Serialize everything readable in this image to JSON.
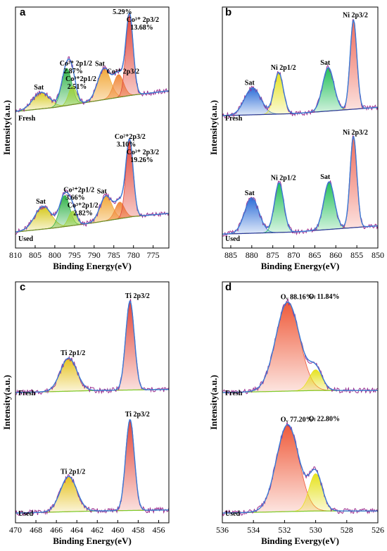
{
  "chart_data": [
    {
      "panel": "a",
      "type": "area",
      "xlabel": "Binding Energy(eV)",
      "ylabel": "Intensity(a.u.)",
      "xlim": [
        810,
        771
      ],
      "xticks": [
        "810",
        "805",
        "800",
        "795",
        "790",
        "785",
        "780",
        "775"
      ],
      "xtick_values": [
        810,
        805,
        800,
        795,
        790,
        785,
        780,
        775
      ],
      "colors": {
        "raw": "#9b2d8f",
        "envelope": "#3a7bd5",
        "background": "#6a8f2a"
      },
      "spectra": [
        {
          "condition": "Fresh",
          "annotations": [
            {
              "label": "Sat",
              "x": 803.5
            },
            {
              "label": "Co²⁺ 2p1/2",
              "x": 797.0
            },
            {
              "label": "2.87%",
              "x": 796.0
            },
            {
              "label": "Co³⁺2p1/2",
              "x": 795.5
            },
            {
              "label": "2.51%",
              "x": 795.0
            },
            {
              "label": "Sat",
              "x": 788.0
            },
            {
              "label": "Co²⁺ 2p3/2",
              "x": 785.0
            },
            {
              "label": "5.29%",
              "x": 783.5
            },
            {
              "label": "Co³⁺ 2p3/2",
              "x": 780.0
            },
            {
              "label": "13.68%",
              "x": 779.0
            }
          ],
          "components": [
            {
              "label": "Sat",
              "center": 803.5,
              "fwhm": 5.0,
              "height": 0.16,
              "color": "#d6c81a"
            },
            {
              "label": "Co²⁺ 2p1/2",
              "center": 797.0,
              "fwhm": 3.0,
              "height": 0.36,
              "color": "#32b34a"
            },
            {
              "label": "Co³⁺ 2p1/2",
              "center": 795.5,
              "fwhm": 2.4,
              "height": 0.18,
              "color": "#9fd23c"
            },
            {
              "label": "Sat",
              "center": 787.5,
              "fwhm": 3.8,
              "height": 0.3,
              "color": "#f2a93b"
            },
            {
              "label": "Co²⁺ 2p3/2",
              "center": 783.8,
              "fwhm": 3.0,
              "height": 0.22,
              "color": "#f08a3c"
            },
            {
              "label": "Co³⁺ 2p3/2",
              "center": 781.0,
              "fwhm": 2.2,
              "height": 0.78,
              "color": "#e2473a"
            }
          ],
          "background": [
            [
              810,
              0.1
            ],
            [
              800,
              0.14
            ],
            [
              790,
              0.2
            ],
            [
              780,
              0.26
            ],
            [
              771,
              0.3
            ]
          ]
        },
        {
          "condition": "Used",
          "annotations": [
            {
              "label": "Sat",
              "x": 803.0
            },
            {
              "label": "Co²⁺2p1/2",
              "x": 796.0
            },
            {
              "label": "3.66%",
              "x": 795.5
            },
            {
              "label": "Co³⁺2p1/2",
              "x": 795.0
            },
            {
              "label": "2.82%",
              "x": 793.5
            },
            {
              "label": "Sat",
              "x": 787.5
            },
            {
              "label": "Co²⁺2p3/2",
              "x": 783.0
            },
            {
              "label": "3.10%",
              "x": 782.5
            },
            {
              "label": "Co³⁺ 2p3/2",
              "x": 780.0
            },
            {
              "label": "19.26%",
              "x": 779.0
            }
          ],
          "components": [
            {
              "label": "Sat",
              "center": 803.0,
              "fwhm": 5.0,
              "height": 0.22,
              "color": "#d6c81a"
            },
            {
              "label": "Co²⁺ 2p1/2",
              "center": 797.5,
              "fwhm": 3.0,
              "height": 0.3,
              "color": "#32b34a"
            },
            {
              "label": "Co³⁺ 2p1/2",
              "center": 795.5,
              "fwhm": 2.4,
              "height": 0.14,
              "color": "#9fd23c"
            },
            {
              "label": "Sat",
              "center": 787.0,
              "fwhm": 3.6,
              "height": 0.24,
              "color": "#f2a93b"
            },
            {
              "label": "Co²⁺ 2p3/2",
              "center": 783.5,
              "fwhm": 2.8,
              "height": 0.16,
              "color": "#f08a3c"
            },
            {
              "label": "Co³⁺ 2p3/2",
              "center": 781.0,
              "fwhm": 2.2,
              "height": 0.74,
              "color": "#e2473a"
            }
          ],
          "background": [
            [
              810,
              0.1
            ],
            [
              800,
              0.14
            ],
            [
              790,
              0.19
            ],
            [
              780,
              0.25
            ],
            [
              771,
              0.28
            ]
          ]
        }
      ]
    },
    {
      "panel": "b",
      "type": "area",
      "xlabel": "Binding Energy(eV)",
      "ylabel": "Intensity(a.u.)",
      "xlim": [
        887,
        850
      ],
      "xticks": [
        "885",
        "880",
        "875",
        "870",
        "865",
        "860",
        "855",
        "850"
      ],
      "xtick_values": [
        885,
        880,
        875,
        870,
        865,
        860,
        855,
        850
      ],
      "colors": {
        "raw": "#9b2d8f",
        "envelope": "#3a7bd5",
        "background": "#2b3a9b"
      },
      "spectra": [
        {
          "condition": "Fresh",
          "annotations": [
            {
              "label": "Sat",
              "x": 880.0
            },
            {
              "label": "Ni 2p1/2",
              "x": 873.8
            },
            {
              "label": "Sat",
              "x": 862.0
            },
            {
              "label": "Ni 2p3/2",
              "x": 856.0
            }
          ],
          "components": [
            {
              "label": "Sat",
              "center": 879.8,
              "fwhm": 4.5,
              "height": 0.26,
              "color": "#2f6fd8"
            },
            {
              "label": "Ni 2p1/2",
              "center": 873.6,
              "fwhm": 2.6,
              "height": 0.4,
              "color": "#e6e21f"
            },
            {
              "label": "Sat",
              "center": 861.8,
              "fwhm": 3.2,
              "height": 0.42,
              "color": "#22c05a"
            },
            {
              "label": "Ni 2p3/2",
              "center": 855.8,
              "fwhm": 1.9,
              "height": 0.86,
              "color": "#ef6b5b"
            }
          ],
          "background": [
            [
              887,
              0.06
            ],
            [
              870,
              0.08
            ],
            [
              860,
              0.11
            ],
            [
              850,
              0.14
            ]
          ]
        },
        {
          "condition": "Used",
          "annotations": [
            {
              "label": "Sat",
              "x": 880.0
            },
            {
              "label": "Ni 2p1/2",
              "x": 873.8
            },
            {
              "label": "Sat",
              "x": 862.0
            },
            {
              "label": "Ni 2p3/2",
              "x": 856.0
            }
          ],
          "components": [
            {
              "label": "Sat",
              "center": 880.0,
              "fwhm": 4.0,
              "height": 0.34,
              "color": "#2f6fd8"
            },
            {
              "label": "Ni 2p1/2",
              "center": 873.5,
              "fwhm": 2.6,
              "height": 0.48,
              "color": "#22c05a"
            },
            {
              "label": "Sat",
              "center": 861.6,
              "fwhm": 3.0,
              "height": 0.46,
              "color": "#22c05a"
            },
            {
              "label": "Ni 2p3/2",
              "center": 855.8,
              "fwhm": 1.9,
              "height": 0.88,
              "color": "#ef6b5b"
            }
          ],
          "background": [
            [
              887,
              0.08
            ],
            [
              870,
              0.1
            ],
            [
              860,
              0.13
            ],
            [
              850,
              0.16
            ]
          ]
        }
      ]
    },
    {
      "panel": "c",
      "type": "area",
      "xlabel": "Binding Energy(eV)",
      "ylabel": "Intensity(a.u.)",
      "xlim": [
        470,
        455
      ],
      "xticks": [
        "470",
        "468",
        "466",
        "464",
        "462",
        "460",
        "458",
        "456"
      ],
      "xtick_values": [
        470,
        468,
        466,
        464,
        462,
        460,
        458,
        456
      ],
      "colors": {
        "raw": "#9b2d8f",
        "envelope": "#3a7bd5",
        "background": "#7ecb2a"
      },
      "spectra": [
        {
          "condition": "Fresh",
          "annotations": [
            {
              "label": "Ti 2p1/2",
              "x": 464.9
            },
            {
              "label": "Ti 2p3/2",
              "x": 458.6
            }
          ],
          "components": [
            {
              "label": "Ti 2p1/2",
              "center": 464.8,
              "fwhm": 1.9,
              "height": 0.32,
              "color": "#e6c21f"
            },
            {
              "label": "Ti 2p3/2",
              "center": 458.8,
              "fwhm": 1.0,
              "height": 0.86,
              "color": "#e2473a"
            }
          ],
          "background": [
            [
              470,
              0.04
            ],
            [
              462,
              0.06
            ],
            [
              455,
              0.07
            ]
          ]
        },
        {
          "condition": "Used",
          "annotations": [
            {
              "label": "Ti 2p1/2",
              "x": 464.9
            },
            {
              "label": "Ti 2p3/2",
              "x": 458.6
            }
          ],
          "components": [
            {
              "label": "Ti 2p1/2",
              "center": 464.8,
              "fwhm": 1.9,
              "height": 0.34,
              "color": "#e6c21f"
            },
            {
              "label": "Ti 2p3/2",
              "center": 458.8,
              "fwhm": 1.0,
              "height": 0.88,
              "color": "#e2473a"
            }
          ],
          "background": [
            [
              470,
              0.04
            ],
            [
              462,
              0.06
            ],
            [
              455,
              0.07
            ]
          ]
        }
      ]
    },
    {
      "panel": "d",
      "type": "area",
      "xlabel": "Binding Evergy(eV)",
      "ylabel": "Intensity(a.u.)",
      "xlim": [
        536,
        526
      ],
      "xticks": [
        "536",
        "534",
        "532",
        "530",
        "528",
        "526"
      ],
      "xtick_values": [
        536,
        534,
        532,
        530,
        528,
        526
      ],
      "colors": {
        "raw": "#9b2d8f",
        "envelope": "#3a7bd5",
        "background": "#7ecb2a"
      },
      "spectra": [
        {
          "condition": "Fresh",
          "annotations": [
            {
              "label": "Oᵥ  88.16%",
              "x": 531.8
            },
            {
              "label": "Oₗ  11.84%",
              "x": 530.0
            }
          ],
          "components": [
            {
              "label": "Oᵥ",
              "center": 531.8,
              "fwhm": 1.8,
              "height": 0.86,
              "color": "#ef5a3a"
            },
            {
              "label": "Oₗ",
              "center": 530.0,
              "fwhm": 1.0,
              "height": 0.2,
              "color": "#e6e21f"
            }
          ],
          "background": [
            [
              536,
              0.04
            ],
            [
              530,
              0.06
            ],
            [
              526,
              0.06
            ]
          ]
        },
        {
          "condition": "Used",
          "annotations": [
            {
              "label": "Oᵥ  77.20%",
              "x": 531.8
            },
            {
              "label": "Oₗ  22.80%",
              "x": 530.0
            }
          ],
          "components": [
            {
              "label": "Oᵥ",
              "center": 531.8,
              "fwhm": 1.7,
              "height": 0.84,
              "color": "#ef5a3a"
            },
            {
              "label": "Oₗ",
              "center": 530.0,
              "fwhm": 1.0,
              "height": 0.36,
              "color": "#e6e21f"
            }
          ],
          "background": [
            [
              536,
              0.04
            ],
            [
              530,
              0.06
            ],
            [
              526,
              0.06
            ]
          ]
        }
      ]
    }
  ]
}
